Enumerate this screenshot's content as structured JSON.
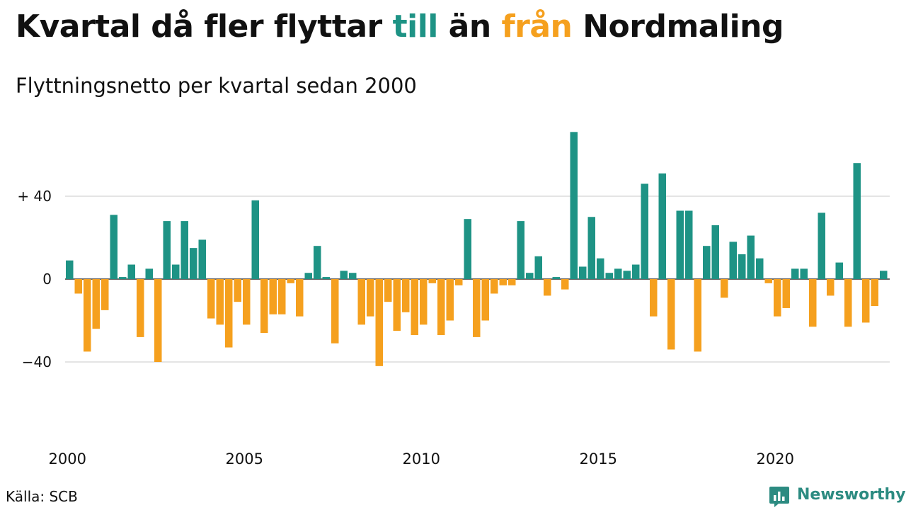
{
  "title": {
    "before": "Kvartal då fler flyttar ",
    "word_in": "till",
    "middle": " än ",
    "word_out": "från",
    "after": " Nordmaling"
  },
  "subtitle": "Flyttningsnetto per kvartal sedan 2000",
  "source": "Källa: SCB",
  "brand": {
    "name": "Newsworthy",
    "icon": "newsworthy-logo-icon"
  },
  "colors": {
    "positive": "#1e9385",
    "negative": "#f5a01e",
    "grid": "#dcdcdc",
    "text": "#111111"
  },
  "chart_data": {
    "type": "bar",
    "title": "Kvartal då fler flyttar till än från Nordmaling",
    "subtitle": "Flyttningsnetto per kvartal sedan 2000",
    "xlabel": "",
    "ylabel": "",
    "x_tick_labels": [
      "2000",
      "2005",
      "2010",
      "2015",
      "2020"
    ],
    "y_ticks": [
      {
        "value": 40,
        "label": "+ 40"
      },
      {
        "value": 0,
        "label": "0"
      },
      {
        "value": -40,
        "label": "−40"
      }
    ],
    "ylim": [
      -70,
      75
    ],
    "grid": true,
    "legend": "none",
    "series": [
      {
        "start": "2000 Q1",
        "frequency": "quarterly",
        "values": [
          9,
          -7,
          -35,
          -24,
          -15,
          31,
          1,
          7,
          -28,
          5,
          -40,
          28,
          7,
          28,
          15,
          19,
          -19,
          -22,
          -33,
          -11,
          -22,
          38,
          -26,
          -17,
          -17,
          -2,
          -18,
          3,
          16,
          1,
          -31,
          4,
          3,
          -22,
          -18,
          -42,
          -11,
          -25,
          -16,
          -27,
          -22,
          -2,
          -27,
          -20,
          -3,
          29,
          -28,
          -20,
          -7,
          -3,
          -3,
          28,
          3,
          11,
          -8,
          1,
          -5,
          71,
          6,
          30,
          10,
          3,
          5,
          4,
          7,
          46,
          -18,
          51,
          -34,
          33,
          33,
          -35,
          16,
          26,
          -9,
          18,
          12,
          21,
          10,
          -2,
          -18,
          -14,
          5,
          5,
          -23,
          32,
          -8,
          8,
          -23,
          56,
          -21,
          -13,
          4
        ]
      }
    ]
  }
}
